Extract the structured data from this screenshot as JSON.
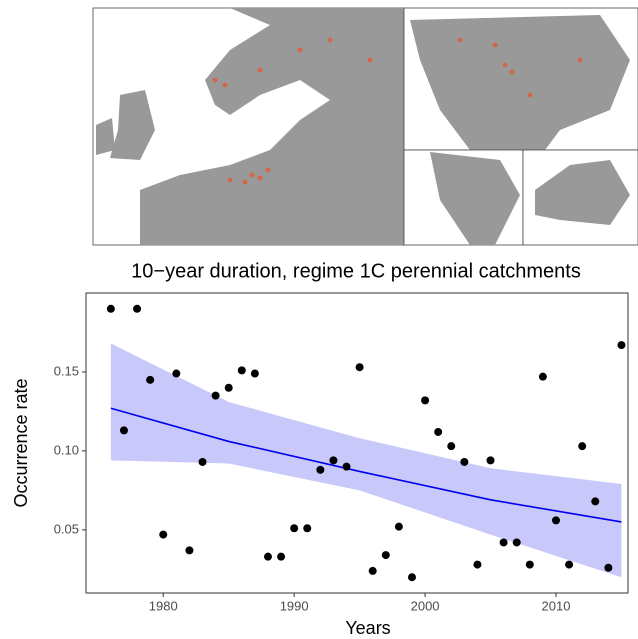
{
  "chart_data": {
    "type": "scatter",
    "title": "10−year duration, regime 1C perennial catchments",
    "x_label": "Years",
    "y_label": "Occurrence rate",
    "x": [
      1976,
      1977,
      1978,
      1979,
      1980,
      1981,
      1982,
      1983,
      1984,
      1985,
      1986,
      1987,
      1988,
      1989,
      1990,
      1991,
      1992,
      1993,
      1994,
      1995,
      1996,
      1997,
      1998,
      1999,
      2000,
      2001,
      2002,
      2003,
      2004,
      2005,
      2006,
      2007,
      2008,
      2009,
      2010,
      2011,
      2012,
      2013,
      2014,
      2015
    ],
    "values": [
      0.19,
      0.113,
      0.19,
      0.145,
      0.047,
      0.149,
      0.037,
      0.093,
      0.135,
      0.14,
      0.151,
      0.149,
      0.033,
      0.033,
      0.051,
      0.051,
      0.088,
      0.094,
      0.09,
      0.153,
      0.024,
      0.034,
      0.052,
      0.02,
      0.132,
      0.112,
      0.103,
      0.093,
      0.028,
      0.094,
      0.042,
      0.042,
      0.028,
      0.147,
      0.056,
      0.028,
      0.103,
      0.068,
      0.026,
      0.167
    ],
    "color": "#000000",
    "fit": {
      "x": [
        1976,
        1985,
        1995,
        2005,
        2015
      ],
      "values": [
        0.127,
        0.106,
        0.087,
        0.069,
        0.055
      ],
      "lower": [
        0.094,
        0.092,
        0.075,
        0.047,
        0.02
      ],
      "upper": [
        0.168,
        0.131,
        0.108,
        0.089,
        0.079
      ],
      "color": "#0000ee",
      "fill": "#c8c8fa"
    },
    "xlim": [
      1974.1,
      2015.5
    ],
    "ylim": [
      0.01,
      0.2
    ],
    "xticks": [
      1980,
      1990,
      2000,
      2010
    ],
    "yticks": [
      0.05,
      {
        "value": 0.1,
        "label": "0.10"
      },
      0.15
    ]
  }
}
